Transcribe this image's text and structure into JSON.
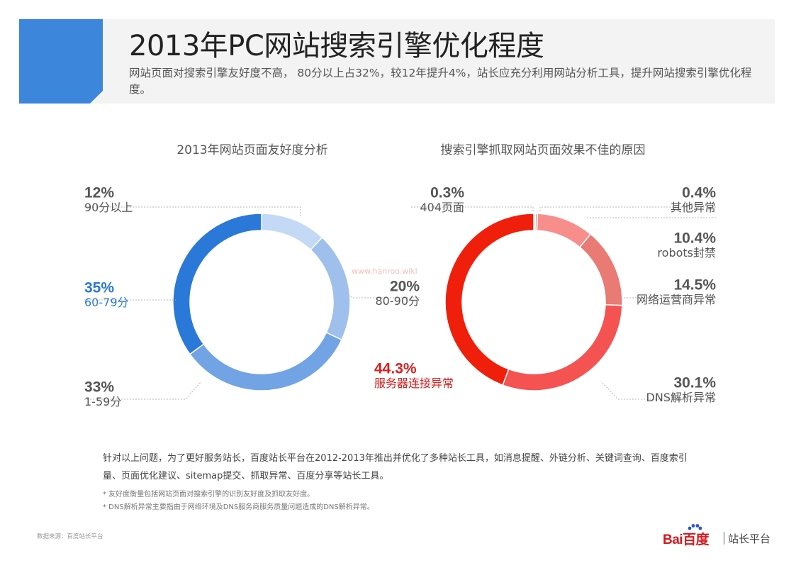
{
  "header": {
    "title": "2013年PC网站搜索引擎优化程度",
    "subtitle": "网站页面对搜索引擎友好度不高， 80分以上占32%，较12年提升4%，站长应充分利用网站分析工具，提升网站搜索引擎优化程度。",
    "accent_color": "#3c86dc"
  },
  "chart_data": [
    {
      "type": "pie",
      "title": "2013年网站页面友好度分析",
      "slices": [
        {
          "label": "90分以上",
          "value": 12,
          "value_text": "12%",
          "color": "#c3d9f5",
          "label_color": "#555555"
        },
        {
          "label": "80-90分",
          "value": 20,
          "value_text": "20%",
          "color": "#9fc0ec",
          "label_color": "#555555"
        },
        {
          "label": "1-59分",
          "value": 33,
          "value_text": "33%",
          "color": "#72a3e5",
          "label_color": "#555555"
        },
        {
          "label": "60-79分",
          "value": 35,
          "value_text": "35%",
          "color": "#2a78d8",
          "label_color": "#2a78d8"
        }
      ]
    },
    {
      "type": "pie",
      "title": "搜索引擎抓取网站页面效果不佳的原因",
      "slices": [
        {
          "label": "404页面",
          "value": 0.3,
          "value_text": "0.3%",
          "color": "#f3c9c6",
          "label_color": "#555555"
        },
        {
          "label": "其他异常",
          "value": 0.4,
          "value_text": "0.4%",
          "color": "#f6a3a3",
          "label_color": "#555555"
        },
        {
          "label": "robots封禁",
          "value": 10.4,
          "value_text": "10.4%",
          "color": "#f88e8c",
          "label_color": "#555555"
        },
        {
          "label": "网络运营商异常",
          "value": 14.5,
          "value_text": "14.5%",
          "color": "#e97a74",
          "label_color": "#555555"
        },
        {
          "label": "DNS解析异常",
          "value": 30.1,
          "value_text": "30.1%",
          "color": "#f55252",
          "label_color": "#555555"
        },
        {
          "label": "服务器连接异常",
          "value": 44.3,
          "value_text": "44.3%",
          "color": "#f01f0c",
          "label_color": "#d81e1e"
        }
      ]
    }
  ],
  "footer": {
    "note_main": "针对以上问题，为了更好服务站长，百度站长平台在2012-2013年推出并优化了多种站长工具，如消息提醒、外链分析、关键词查询、百度索引量、页面优化建议、sitemap提交、抓取异常、百度分享等站长工具。",
    "note_1": "* 友好度衡量包括网站页面对搜索引擎的识别友好度及抓取友好度。",
    "note_2": "* DNS解析异常主要指由于网络环境及DNS服务商服务质量问题造成的DNS解析异常。",
    "source": "数据来源：百度站长平台",
    "watermark": "www.hanroo.wiki"
  },
  "logo": {
    "brand": "Bai百度",
    "sub": "站长平台",
    "brand_color": "#d2191e"
  }
}
